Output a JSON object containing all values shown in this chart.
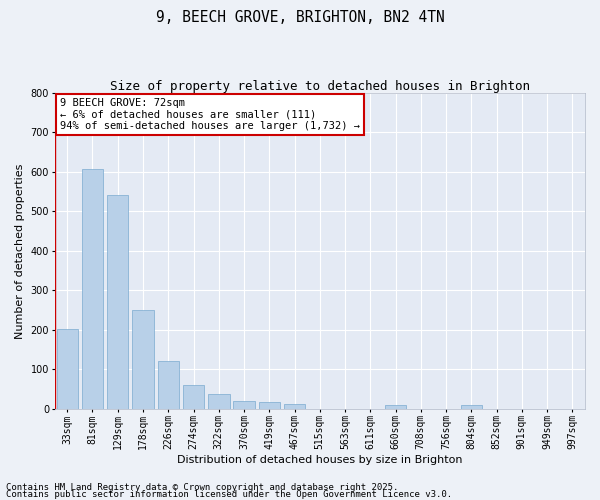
{
  "title": "9, BEECH GROVE, BRIGHTON, BN2 4TN",
  "subtitle": "Size of property relative to detached houses in Brighton",
  "xlabel": "Distribution of detached houses by size in Brighton",
  "ylabel": "Number of detached properties",
  "categories": [
    "33sqm",
    "81sqm",
    "129sqm",
    "178sqm",
    "226sqm",
    "274sqm",
    "322sqm",
    "370sqm",
    "419sqm",
    "467sqm",
    "515sqm",
    "563sqm",
    "611sqm",
    "660sqm",
    "708sqm",
    "756sqm",
    "804sqm",
    "852sqm",
    "901sqm",
    "949sqm",
    "997sqm"
  ],
  "values": [
    203,
    607,
    542,
    250,
    120,
    60,
    36,
    20,
    17,
    13,
    0,
    0,
    0,
    8,
    0,
    0,
    8,
    0,
    0,
    0,
    0
  ],
  "bar_color": "#b8d0e8",
  "bar_edge_color": "#7aaad0",
  "marker_color": "#cc0000",
  "annotation_text": "9 BEECH GROVE: 72sqm\n← 6% of detached houses are smaller (111)\n94% of semi-detached houses are larger (1,732) →",
  "annotation_box_color": "#cc0000",
  "ylim": [
    0,
    800
  ],
  "yticks": [
    0,
    100,
    200,
    300,
    400,
    500,
    600,
    700,
    800
  ],
  "footer_line1": "Contains HM Land Registry data © Crown copyright and database right 2025.",
  "footer_line2": "Contains public sector information licensed under the Open Government Licence v3.0.",
  "bg_color": "#edf1f7",
  "plot_bg_color": "#e4eaf4",
  "grid_color": "#ffffff",
  "title_fontsize": 10.5,
  "subtitle_fontsize": 9,
  "axis_label_fontsize": 8,
  "tick_fontsize": 7,
  "annotation_fontsize": 7.5,
  "footer_fontsize": 6.5
}
